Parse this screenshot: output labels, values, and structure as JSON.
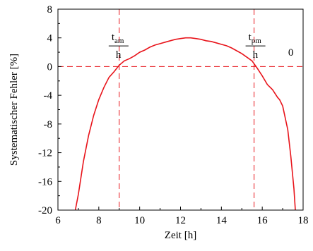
{
  "chart_data": {
    "type": "line",
    "xlabel": "Zeit [h]",
    "ylabel": "Systematischer Fehler [%]",
    "xlim": [
      6,
      18
    ],
    "ylim": [
      -20,
      8
    ],
    "x_ticks": [
      6,
      8,
      10,
      12,
      14,
      16,
      18
    ],
    "y_ticks": [
      8,
      4,
      0,
      -4,
      -8,
      -12,
      -16,
      -20
    ],
    "grid": false,
    "series": [
      {
        "color": "#e8141b",
        "x": [
          6.85,
          7.0,
          7.25,
          7.5,
          7.75,
          8.0,
          8.25,
          8.5,
          8.75,
          9.0,
          9.25,
          9.5,
          9.75,
          10.0,
          10.25,
          10.5,
          10.75,
          11.0,
          11.25,
          11.5,
          11.75,
          12.0,
          12.25,
          12.5,
          12.75,
          13.0,
          13.25,
          13.5,
          13.75,
          14.0,
          14.25,
          14.5,
          14.75,
          15.0,
          15.25,
          15.5,
          15.75,
          16.0,
          16.25,
          16.5,
          16.75,
          16.85,
          17.0,
          17.25,
          17.4,
          17.55,
          17.62
        ],
        "y": [
          -20.0,
          -17.8,
          -13.2,
          -9.6,
          -6.8,
          -4.6,
          -2.9,
          -1.5,
          -0.7,
          0.2,
          0.8,
          1.1,
          1.5,
          2.0,
          2.3,
          2.7,
          3.0,
          3.2,
          3.4,
          3.6,
          3.8,
          3.9,
          4.0,
          4.0,
          3.9,
          3.8,
          3.6,
          3.5,
          3.3,
          3.1,
          2.9,
          2.6,
          2.2,
          1.8,
          1.3,
          0.8,
          -0.2,
          -1.3,
          -2.5,
          -3.2,
          -4.3,
          -4.6,
          -5.5,
          -8.8,
          -12.5,
          -17.0,
          -20.0
        ]
      }
    ],
    "reference_lines": {
      "horizontal": [
        0
      ],
      "vertical": [
        9.0,
        15.6
      ],
      "color": "#e8141b",
      "style": "dashed"
    },
    "annotations": [
      {
        "id": "tam",
        "main": "t",
        "sub": "am",
        "denominator": "h",
        "x": 8.9,
        "y": 2.0
      },
      {
        "id": "tpm",
        "main": "t",
        "sub": "pm",
        "denominator": "h",
        "x": 15.6,
        "y": 2.0
      },
      {
        "id": "zero",
        "text": "0",
        "x": 17.4,
        "y": 1.5
      }
    ]
  }
}
